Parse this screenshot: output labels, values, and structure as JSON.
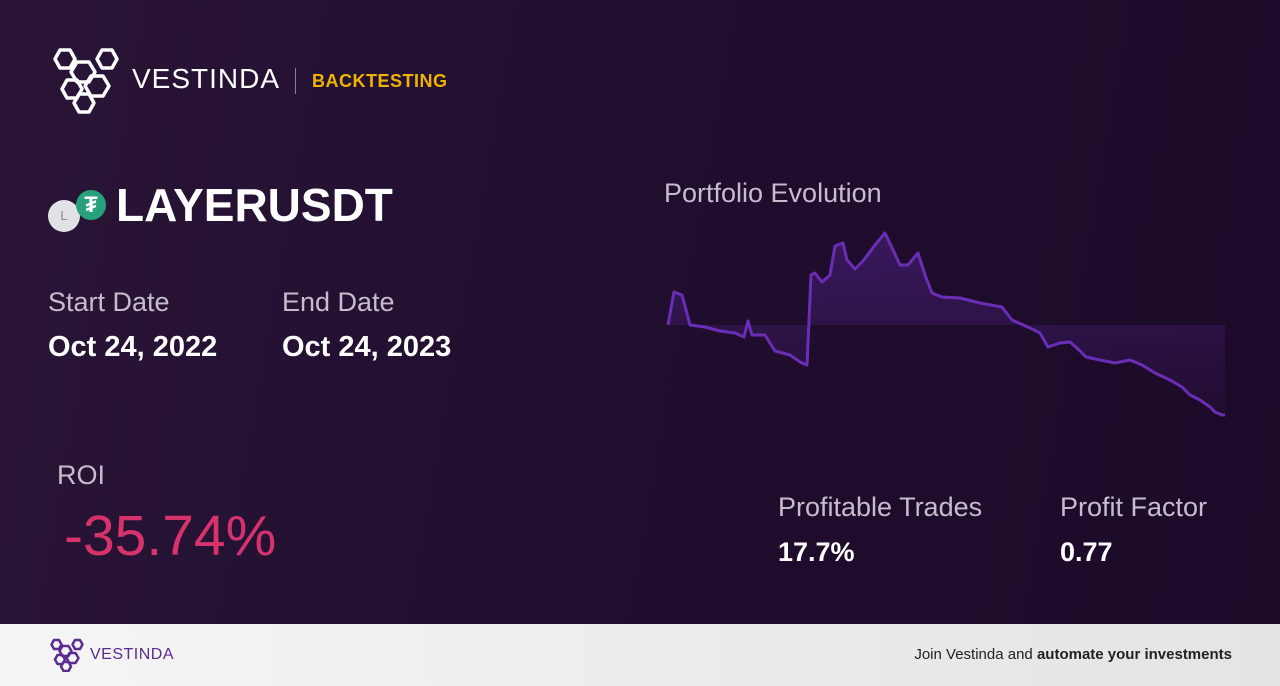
{
  "header": {
    "brand": "VESTINDA",
    "section": "BACKTESTING"
  },
  "asset": {
    "pair": "LAYERUSDT",
    "base_icon_letter": "L",
    "quote_icon_glyph": "₮"
  },
  "dates": {
    "start_label": "Start Date",
    "start_value": "Oct 24, 2022",
    "end_label": "End Date",
    "end_value": "Oct 24, 2023"
  },
  "roi": {
    "label": "ROI",
    "value": "-35.74%",
    "color": "#d6336c"
  },
  "chart": {
    "title": "Portfolio Evolution",
    "line_color": "#6a2db5"
  },
  "stats": {
    "profitable_trades_label": "Profitable Trades",
    "profitable_trades_value": "17.7%",
    "profit_factor_label": "Profit Factor",
    "profit_factor_value": "0.77"
  },
  "footer": {
    "brand": "VESTINDA",
    "cta_prefix": "Join Vestinda and ",
    "cta_bold": "automate your investments"
  },
  "colors": {
    "accent": "#f0b400",
    "brand_purple": "#5a2d8c",
    "tether_green": "#27a17b"
  }
}
